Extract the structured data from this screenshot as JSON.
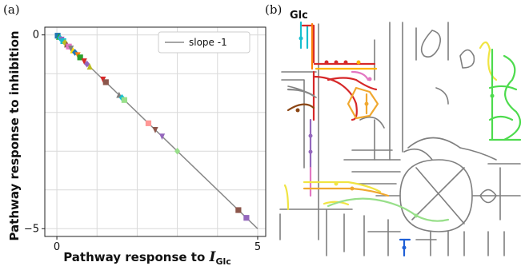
{
  "panel_a": {
    "label": "(a)",
    "x_axis_title": "Pathway response to ",
    "x_axis_symbol": "I",
    "x_axis_subscript": "Glc",
    "y_axis_title": "Pathway response to inhibition",
    "legend_label": "slope -1"
  },
  "panel_b": {
    "label": "(b)",
    "glc_label": "Glc"
  },
  "chart_data": {
    "type": "scatter",
    "xlabel": "Pathway response to I_Glc",
    "ylabel": "Pathway response to inhibition",
    "xlim": [
      -0.3,
      5.2
    ],
    "ylim": [
      -5.2,
      0.2
    ],
    "x_ticks": [
      {
        "value": 0,
        "label": "0"
      },
      {
        "value": 5,
        "label": "5"
      }
    ],
    "y_ticks": [
      {
        "value": 0,
        "label": "0"
      },
      {
        "value": -5,
        "label": "−5"
      }
    ],
    "grid": true,
    "legend_position": "top-right",
    "reference_line": {
      "name": "slope -1",
      "slope": -1,
      "intercept": 0,
      "x_range": [
        0,
        5
      ],
      "color": "#888888"
    },
    "points": [
      {
        "x": 0.02,
        "y": -0.02,
        "color": "#1f77b4",
        "marker": "square"
      },
      {
        "x": 0.05,
        "y": -0.05,
        "color": "#2ca02c",
        "marker": "triangle"
      },
      {
        "x": 0.08,
        "y": -0.08,
        "color": "#17becf",
        "marker": "diamond"
      },
      {
        "x": 0.12,
        "y": -0.12,
        "color": "#9467bd",
        "marker": "triangle-down"
      },
      {
        "x": 0.16,
        "y": -0.16,
        "color": "#17becf",
        "marker": "square"
      },
      {
        "x": 0.2,
        "y": -0.2,
        "color": "#bcbd22",
        "marker": "diamond"
      },
      {
        "x": 0.25,
        "y": -0.25,
        "color": "#8c564b",
        "marker": "triangle"
      },
      {
        "x": 0.3,
        "y": -0.3,
        "color": "#e377c2",
        "marker": "square"
      },
      {
        "x": 0.35,
        "y": -0.35,
        "color": "#7f7f7f",
        "marker": "triangle-down"
      },
      {
        "x": 0.4,
        "y": -0.4,
        "color": "#ffd700",
        "marker": "triangle"
      },
      {
        "x": 0.45,
        "y": -0.45,
        "color": "#1f77b4",
        "marker": "diamond"
      },
      {
        "x": 0.52,
        "y": -0.52,
        "color": "#ff7f0e",
        "marker": "triangle-down"
      },
      {
        "x": 0.58,
        "y": -0.58,
        "color": "#2ca02c",
        "marker": "square"
      },
      {
        "x": 0.68,
        "y": -0.68,
        "color": "#d62728",
        "marker": "triangle-down"
      },
      {
        "x": 0.75,
        "y": -0.75,
        "color": "#9467bd",
        "marker": "diamond"
      },
      {
        "x": 0.82,
        "y": -0.82,
        "color": "#bcbd22",
        "marker": "triangle"
      },
      {
        "x": 1.15,
        "y": -1.15,
        "color": "#d62728",
        "marker": "triangle-down"
      },
      {
        "x": 1.22,
        "y": -1.22,
        "color": "#8c564b",
        "marker": "square"
      },
      {
        "x": 1.55,
        "y": -1.55,
        "color": "#7f7f7f",
        "marker": "triangle"
      },
      {
        "x": 1.62,
        "y": -1.62,
        "color": "#17becf",
        "marker": "diamond"
      },
      {
        "x": 1.68,
        "y": -1.68,
        "color": "#98df8a",
        "marker": "square"
      },
      {
        "x": 2.28,
        "y": -2.28,
        "color": "#ff9896",
        "marker": "square"
      },
      {
        "x": 2.45,
        "y": -2.45,
        "color": "#8c564b",
        "marker": "triangle-down"
      },
      {
        "x": 2.62,
        "y": -2.62,
        "color": "#9467bd",
        "marker": "triangle-down"
      },
      {
        "x": 3.0,
        "y": -3.0,
        "color": "#98df8a",
        "marker": "diamond"
      },
      {
        "x": 4.52,
        "y": -4.52,
        "color": "#8c564b",
        "marker": "square"
      },
      {
        "x": 4.72,
        "y": -4.72,
        "color": "#9467bd",
        "marker": "square"
      }
    ]
  }
}
